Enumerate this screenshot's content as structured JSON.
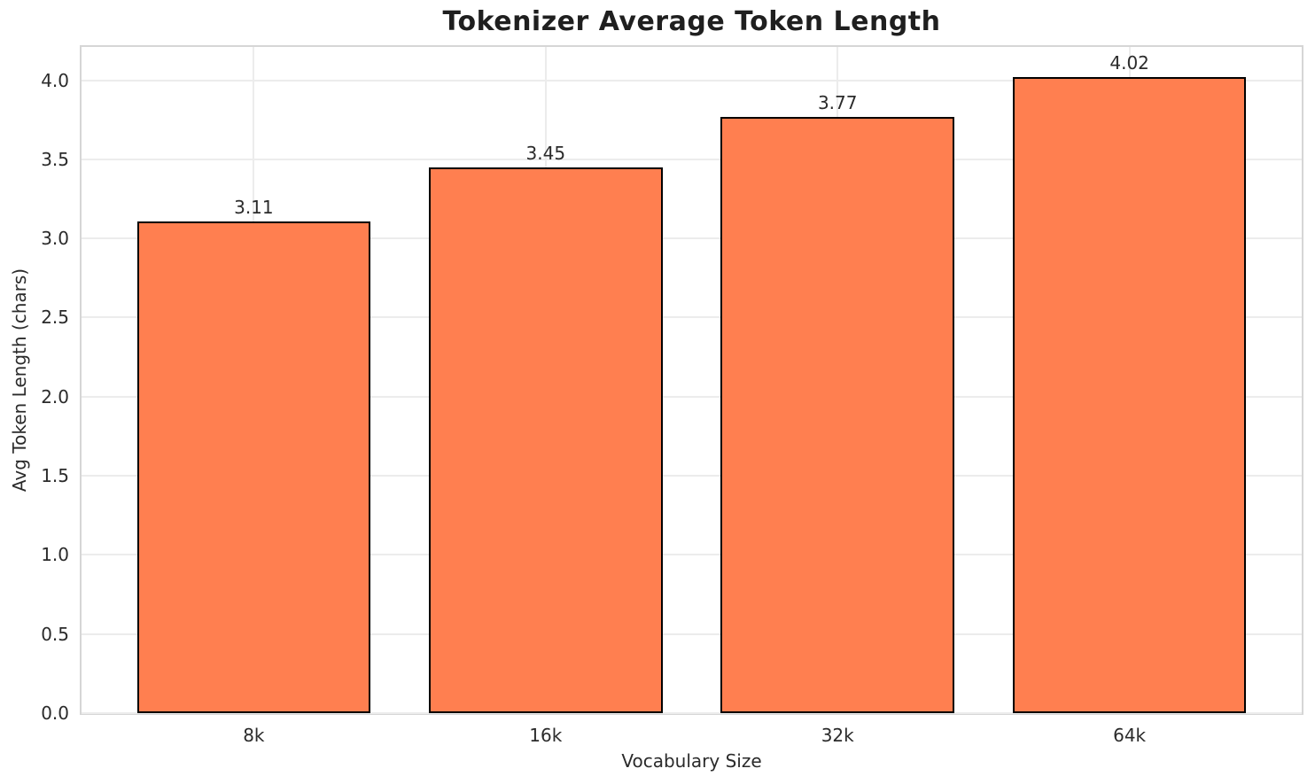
{
  "chart_data": {
    "type": "bar",
    "title": "Tokenizer Average Token Length",
    "xlabel": "Vocabulary Size",
    "ylabel": "Avg Token Length (chars)",
    "categories": [
      "8k",
      "16k",
      "32k",
      "64k"
    ],
    "values": [
      3.11,
      3.45,
      3.77,
      4.02
    ],
    "value_labels": [
      "3.11",
      "3.45",
      "3.77",
      "4.02"
    ],
    "ylim": [
      0,
      4.21
    ],
    "yticks": [
      0.0,
      0.5,
      1.0,
      1.5,
      2.0,
      2.5,
      3.0,
      3.5,
      4.0
    ],
    "ytick_labels": [
      "0.0",
      "0.5",
      "1.0",
      "1.5",
      "2.0",
      "2.5",
      "3.0",
      "3.5",
      "4.0"
    ],
    "grid": true,
    "legend_position": "none",
    "bar_width_fraction": 0.8,
    "bar_color": "#ff7f50",
    "bar_edge_color": "#000000"
  },
  "style": {
    "figure_background": "#ffffff",
    "grid_color": "#ececec",
    "spine_color": "#d6d6d6",
    "text_color": "#2b2b2b",
    "title_color": "#1f1f1f"
  }
}
